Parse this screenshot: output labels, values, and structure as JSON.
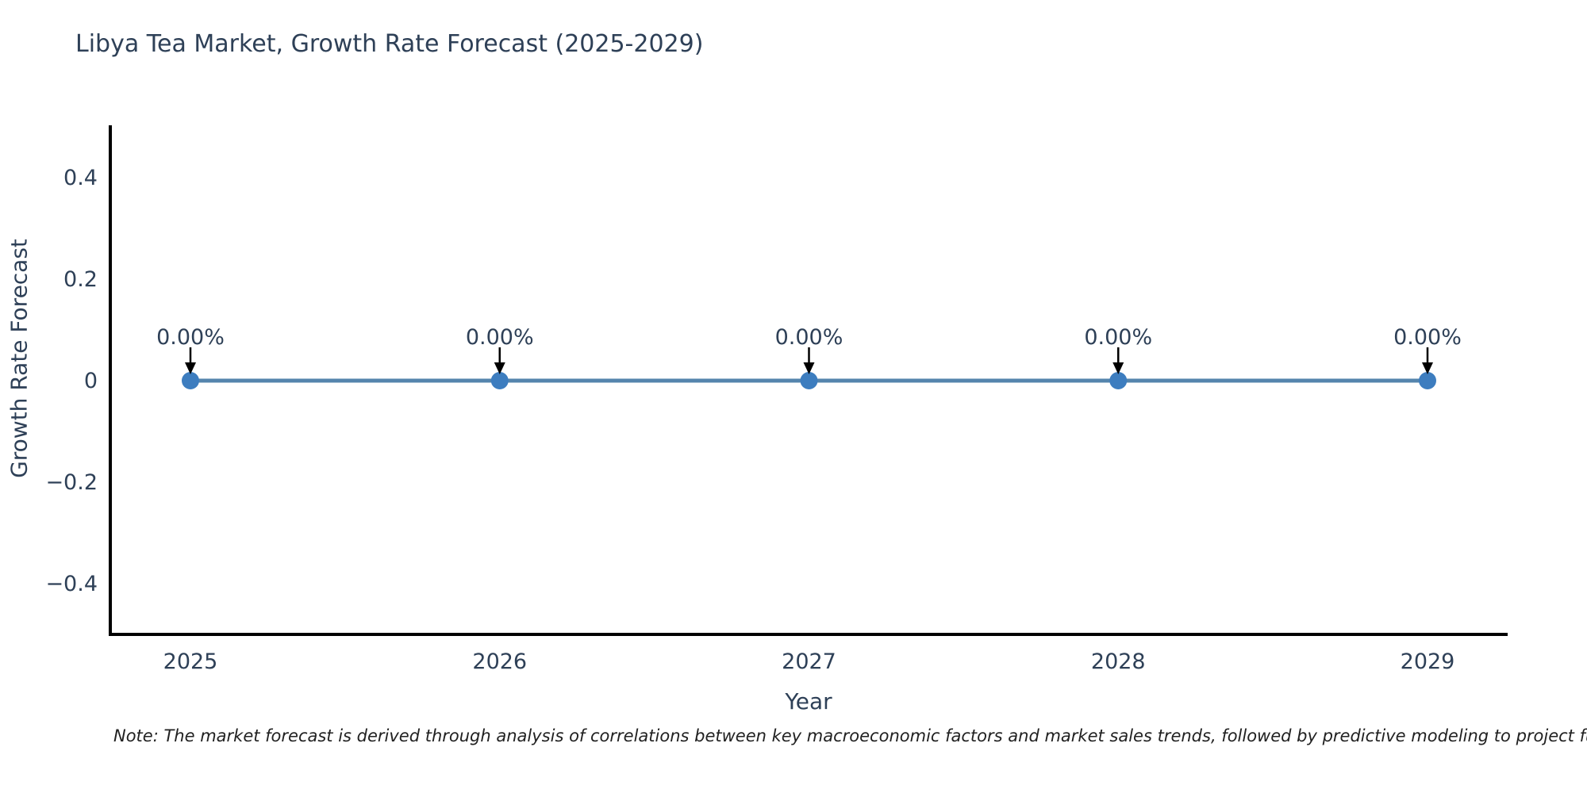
{
  "title": "Libya Tea Market, Growth Rate Forecast (2025-2029)",
  "note": "Note: The market forecast is derived through analysis of correlations between key macroeconomic factors and market sales trends, followed by predictive modeling to project future sa",
  "colors": {
    "text": "#2e4057",
    "note_text": "#212121",
    "axis": "#000000",
    "line": "#5585ad",
    "marker": "#3d7dbf",
    "arrow": "#000000"
  },
  "chart_data": {
    "type": "line",
    "title": "Libya Tea Market, Growth Rate Forecast (2025-2029)",
    "xlabel": "Year",
    "ylabel": "Growth Rate Forecast",
    "categories": [
      "2025",
      "2026",
      "2027",
      "2028",
      "2029"
    ],
    "values": [
      0,
      0,
      0,
      0,
      0
    ],
    "point_labels": [
      "0.00%",
      "0.00%",
      "0.00%",
      "0.00%",
      "0.00%"
    ],
    "yticks": [
      -0.4,
      -0.2,
      0,
      0.2,
      0.4
    ],
    "ylim": [
      -0.5,
      0.5
    ],
    "grid": false,
    "legend": false,
    "marker_style": "circle",
    "annotation_style": "label-with-down-arrow"
  }
}
